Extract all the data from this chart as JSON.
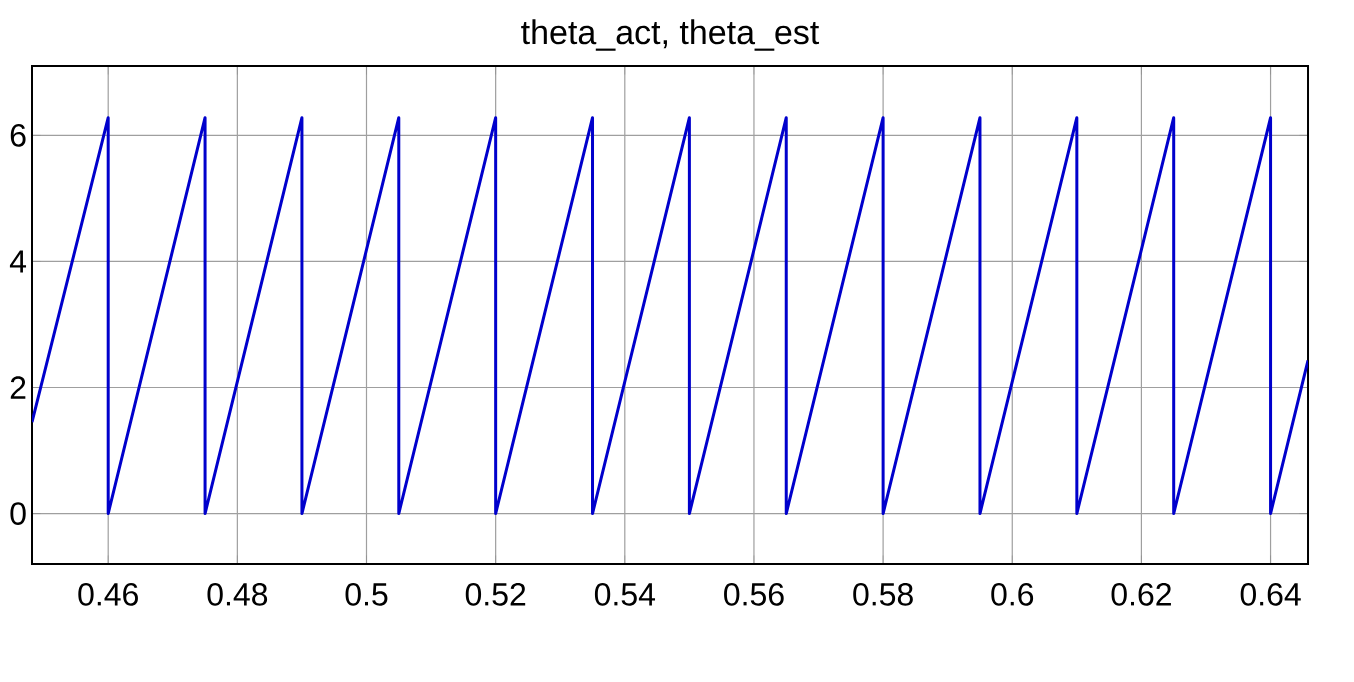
{
  "chart_data": {
    "type": "line",
    "title": "theta_act, theta_est",
    "x": [
      0.4482,
      0.46,
      0.46,
      0.475,
      0.475,
      0.49,
      0.49,
      0.505,
      0.505,
      0.52,
      0.52,
      0.535,
      0.535,
      0.55,
      0.55,
      0.565,
      0.565,
      0.58,
      0.58,
      0.595,
      0.595,
      0.61,
      0.61,
      0.625,
      0.625,
      0.64,
      0.64,
      0.6458
    ],
    "series": [
      {
        "color": "#0000cc",
        "values": [
          1.45,
          6.28,
          0,
          6.28,
          0,
          6.28,
          0,
          6.28,
          0,
          6.28,
          0,
          6.28,
          0,
          6.28,
          0,
          6.28,
          0,
          6.28,
          0,
          6.28,
          0,
          6.28,
          0,
          6.28,
          0,
          6.28,
          0,
          2.43
        ]
      }
    ],
    "xlim": [
      0.4482,
      0.6458
    ],
    "ylim": [
      -0.8,
      7.1
    ],
    "xticks": [
      0.46,
      0.48,
      0.5,
      0.52,
      0.54,
      0.56,
      0.58,
      0.6,
      0.62,
      0.64
    ],
    "yticks": [
      0,
      2,
      4,
      6
    ],
    "grid": true,
    "marker": "none",
    "line_style": "solid"
  }
}
